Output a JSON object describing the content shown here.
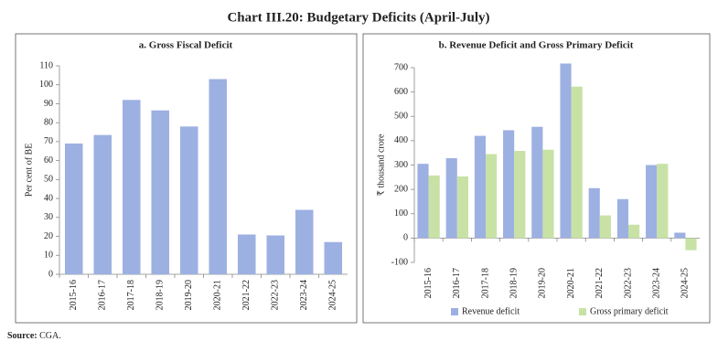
{
  "title": "Chart III.20: Budgetary Deficits (April-July)",
  "source_label": "Source:",
  "source": "CGA.",
  "chart_data": [
    {
      "type": "bar",
      "title": "a. Gross Fiscal Deficit",
      "y_label": "Per cent of BE",
      "categories": [
        "2015-16",
        "2016-17",
        "2017-18",
        "2018-19",
        "2019-20",
        "2020-21",
        "2021-22",
        "2022-23",
        "2023-24",
        "2024-25"
      ],
      "values": [
        69,
        73.5,
        92,
        86.5,
        78,
        103,
        21,
        20.5,
        34,
        17
      ],
      "color": "#9db0e2",
      "ylim": [
        0,
        110
      ],
      "yticks": [
        0,
        10,
        20,
        30,
        40,
        50,
        60,
        70,
        80,
        90,
        100,
        110
      ],
      "grid": false
    },
    {
      "type": "bar",
      "title": "b. Revenue Deficit and Gross Primary Deficit",
      "y_label": "₹ thousand crore",
      "categories": [
        "2015-16",
        "2016-17",
        "2017-18",
        "2018-19",
        "2019-20",
        "2020-21",
        "2021-22",
        "2022-23",
        "2023-24",
        "2024-25"
      ],
      "series": [
        {
          "name": "Revenue deficit",
          "color": "#9db0e2",
          "values": [
            305,
            328,
            420,
            443,
            457,
            717,
            205,
            160,
            300,
            22
          ]
        },
        {
          "name": "Gross primary deficit",
          "color": "#c8e2a6",
          "values": [
            257,
            253,
            345,
            358,
            363,
            622,
            93,
            55,
            305,
            -50
          ]
        }
      ],
      "ylim": [
        -100,
        700
      ],
      "yticks": [
        -100,
        0,
        100,
        200,
        300,
        400,
        500,
        600,
        700
      ],
      "grid": false,
      "legend": "bottom"
    }
  ]
}
